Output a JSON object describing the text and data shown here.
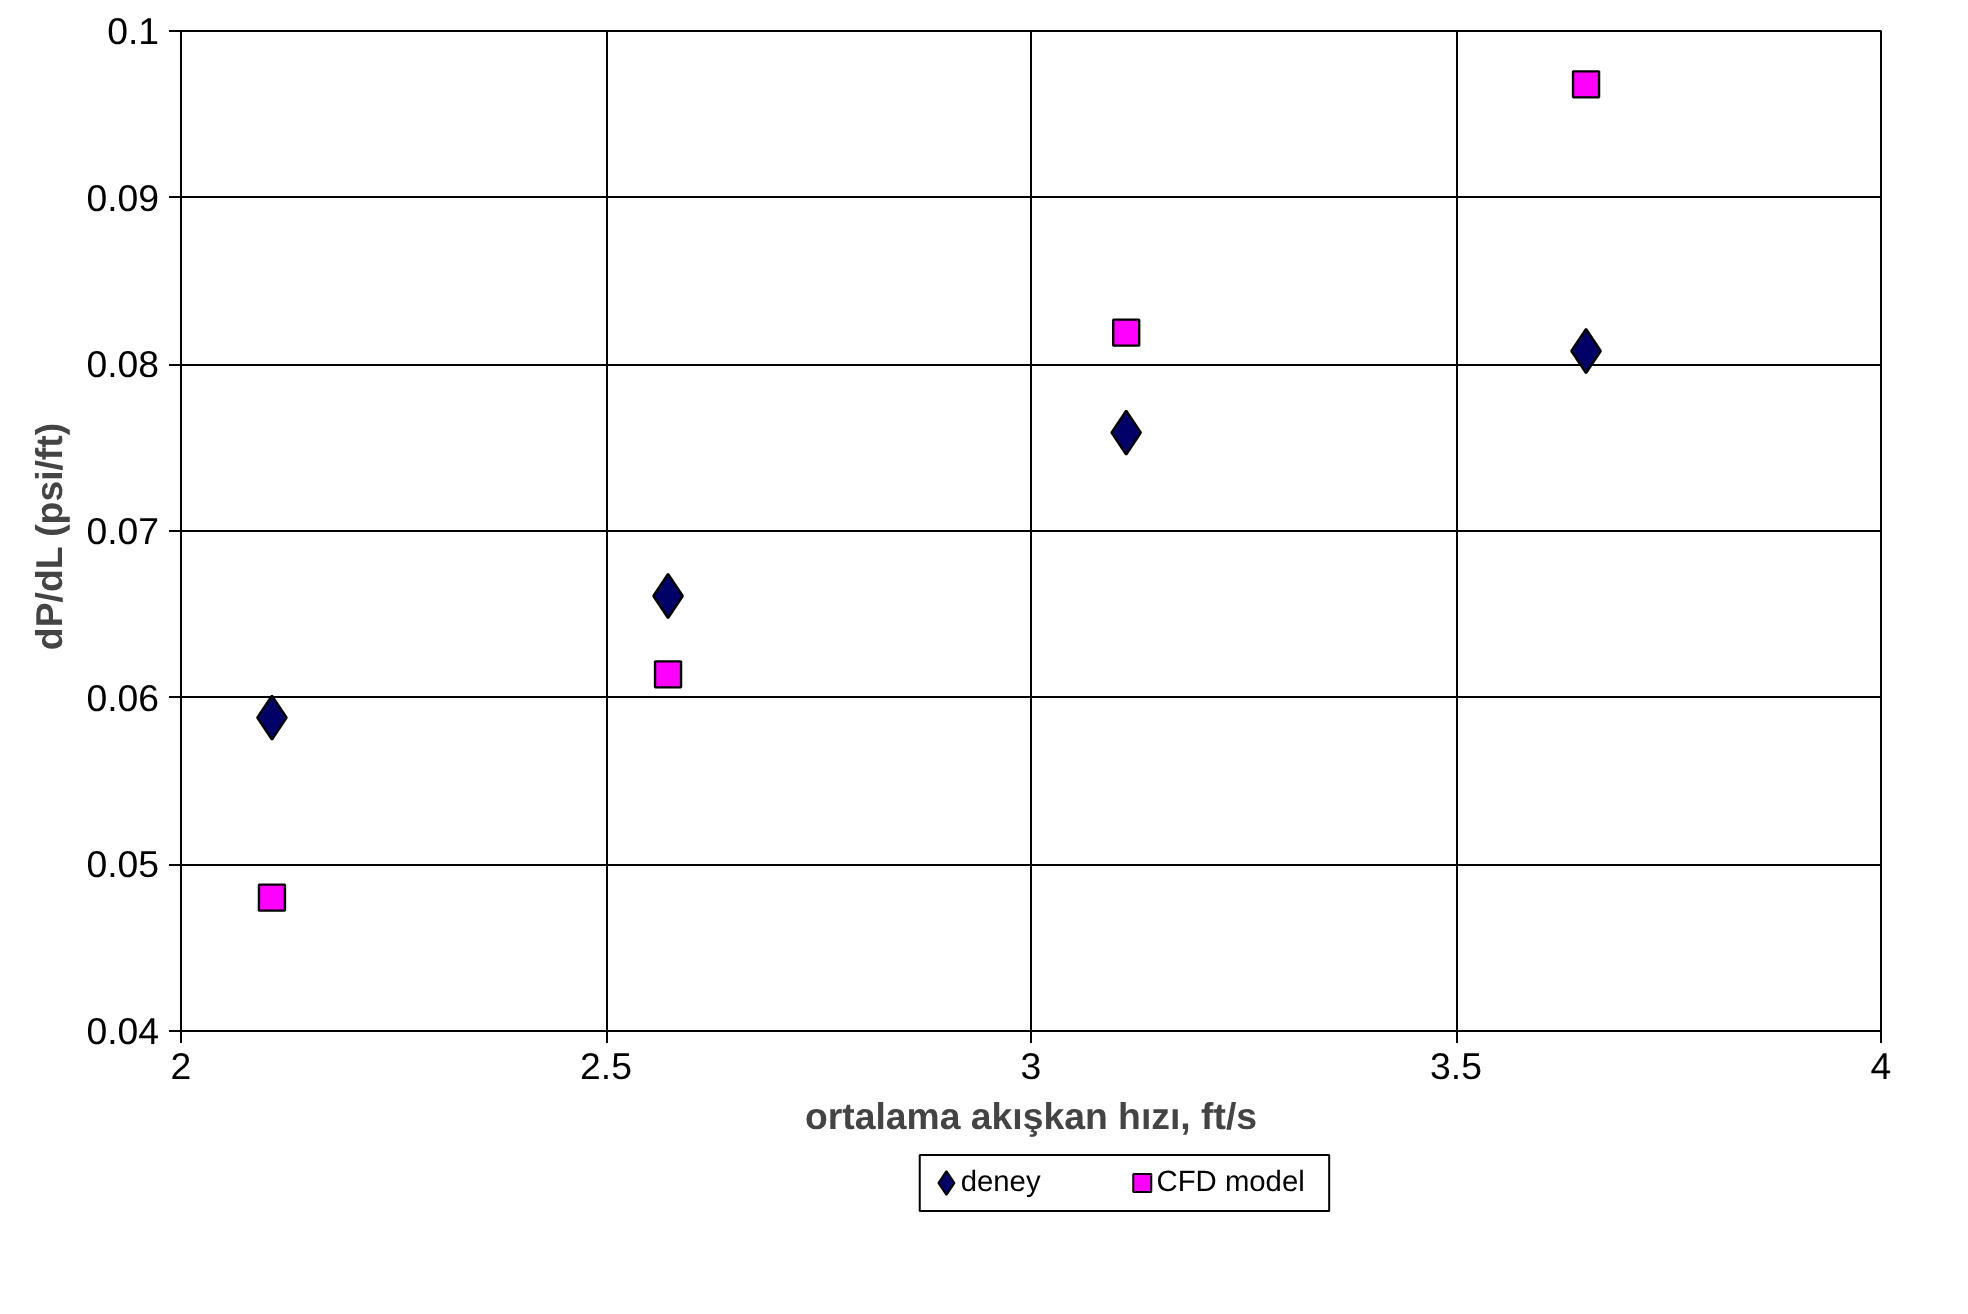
{
  "chart_data": {
    "type": "scatter",
    "xlabel": "ortalama akışkan hızı, ft/s",
    "ylabel": "dP/dL  (psi/ft)",
    "xlim": [
      2,
      4
    ],
    "xticks": [
      2,
      2.5,
      3,
      3.5,
      4
    ],
    "ylim": [
      0.04,
      0.1
    ],
    "yticks": [
      0.04,
      0.05,
      0.06,
      0.07,
      0.08,
      0.09,
      0.1
    ],
    "grid": true,
    "legend": "bottom",
    "series": [
      {
        "name": "deney",
        "color": "#000066",
        "marker": "diamond",
        "x": [
          2.107,
          2.573,
          3.112,
          3.653
        ],
        "values": [
          0.0588,
          0.0661,
          0.0759,
          0.0808
        ]
      },
      {
        "name": "CFD model",
        "color": "#ff00ff",
        "marker": "square",
        "x": [
          2.107,
          2.573,
          3.112,
          3.653
        ],
        "values": [
          0.048,
          0.0614,
          0.0819,
          0.0968
        ]
      }
    ]
  }
}
